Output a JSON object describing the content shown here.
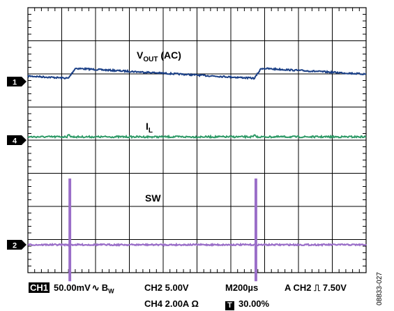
{
  "chart_data": {
    "type": "line",
    "title": "",
    "grid": true,
    "x_divisions": 10,
    "y_divisions": 8,
    "series": [
      {
        "name": "V_OUT (AC)",
        "channel": "1",
        "color": "#1a3f86",
        "waveform": "sawtooth",
        "ramp_period_us": 1100,
        "first_step_us": 240,
        "low_div": 0.1,
        "high_div": 0.4
      },
      {
        "name": "I_L",
        "channel": "4",
        "color": "#2e9a67",
        "waveform": "flat-noisy",
        "level_div": 0.1,
        "spike_period_us": 1100,
        "first_spike_us": 240
      },
      {
        "name": "SW",
        "channel": "2",
        "color": "#9a6ec8",
        "waveform": "pulse-burst",
        "base_div": 0.0,
        "pulse_period_us": 1100,
        "first_pulse_us": 240,
        "pulse_width_us": 16,
        "pulse_high_div": 2.0,
        "pulse_low_div": -1.1
      }
    ],
    "labels": {
      "vout_main": "V",
      "vout_sub": "OUT",
      "vout_suffix": " (AC)",
      "il_main": "I",
      "il_sub": "L",
      "sw": "SW"
    },
    "channel_markers": [
      "1",
      "4",
      "2"
    ]
  },
  "status_bar": {
    "ch1_tag": "CH1",
    "ch1_scale": "50.00mV",
    "bw_symbol": "∿",
    "bw_main": "B",
    "bw_sub": "W",
    "ch2_scale": "CH2 5.00V",
    "timebase": "M200µs",
    "trigger_prefix": "A CH2",
    "trigger_symbol": "⎍",
    "trigger_level": "7.50V",
    "ch4_scale": "CH4 2.00A Ω",
    "t_tag": "T",
    "t_position": "30.00%"
  },
  "figure_id": "08833-027"
}
